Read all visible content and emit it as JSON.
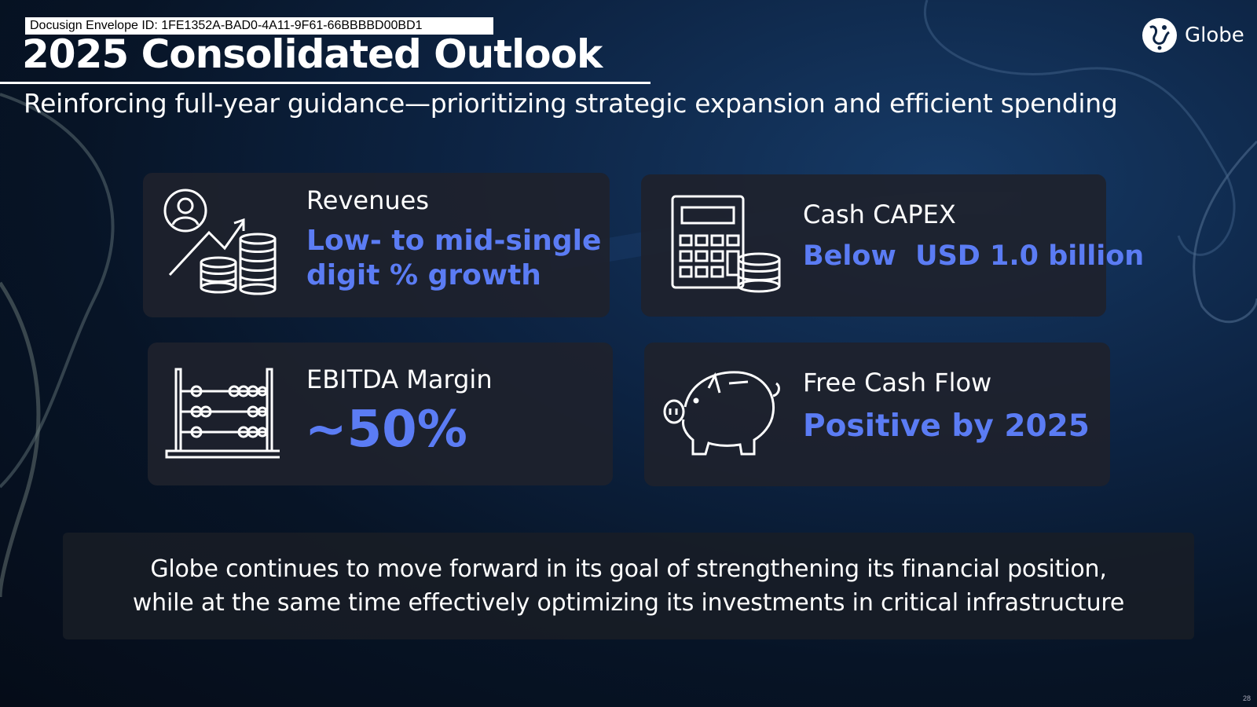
{
  "envelope_id": "Docusign Envelope ID: 1FE1352A-BAD0-4A11-9F61-66BBBBD00BD1",
  "title": "2025 Consolidated Outlook",
  "subtitle": "Reinforcing full-year guidance—prioritizing strategic expansion and efficient spending",
  "brand": {
    "name": "Globe",
    "accent": "#5b7cf4"
  },
  "cards": {
    "revenues": {
      "label": "Revenues",
      "value_line1": "Low- to mid-single",
      "value_line2": "digit % growth",
      "icon": "person-growth-coins-icon"
    },
    "capex": {
      "label": "Cash CAPEX",
      "value": "Below  USD 1.0 billion",
      "icon": "calculator-coins-icon"
    },
    "ebitda": {
      "label": "EBITDA Margin",
      "value": "~50%",
      "icon": "abacus-icon"
    },
    "fcf": {
      "label": "Free Cash Flow",
      "value": "Positive by 2025",
      "icon": "piggy-bank-icon"
    }
  },
  "footer": {
    "line1": "Globe continues to move forward in its goal of strengthening its financial position,",
    "line2": "while at the same time effectively optimizing its investments in critical infrastructure"
  },
  "page_number": "28"
}
